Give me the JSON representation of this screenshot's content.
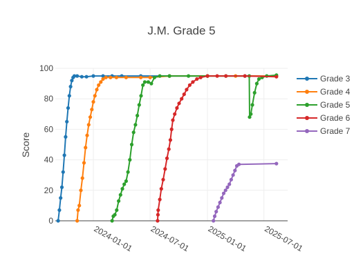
{
  "chart_data": {
    "type": "line",
    "title": "J.M. Grade 5",
    "xlabel": "",
    "ylabel": "Score",
    "xlim": [
      "2023-09-01",
      "2025-09-15"
    ],
    "ylim": [
      0,
      100
    ],
    "x_ticks": [
      "2024-01-01",
      "2024-07-01",
      "2025-01-01",
      "2025-07-01"
    ],
    "y_ticks": [
      0,
      20,
      40,
      60,
      80,
      100
    ],
    "grid": true,
    "legend_position": "right",
    "series": [
      {
        "name": "Grade 3",
        "color": "#1f77b4",
        "points": [
          [
            "2023-09-10",
            0
          ],
          [
            "2023-09-14",
            7
          ],
          [
            "2023-09-18",
            15
          ],
          [
            "2023-09-22",
            22
          ],
          [
            "2023-09-26",
            32
          ],
          [
            "2023-09-30",
            43
          ],
          [
            "2023-10-04",
            55
          ],
          [
            "2023-10-08",
            65
          ],
          [
            "2023-10-12",
            74
          ],
          [
            "2023-10-16",
            82
          ],
          [
            "2023-10-20",
            88
          ],
          [
            "2023-10-24",
            92
          ],
          [
            "2023-10-28",
            94
          ],
          [
            "2023-11-01",
            95
          ],
          [
            "2023-11-10",
            95
          ],
          [
            "2023-11-25",
            94.5
          ],
          [
            "2023-12-10",
            94.5
          ],
          [
            "2024-01-01",
            95
          ],
          [
            "2024-02-01",
            95
          ],
          [
            "2024-03-01",
            95
          ],
          [
            "2024-04-01",
            95
          ],
          [
            "2024-06-01",
            95
          ],
          [
            "2024-09-01",
            95
          ],
          [
            "2025-01-01",
            95
          ],
          [
            "2025-05-01",
            95
          ],
          [
            "2025-08-10",
            95
          ]
        ]
      },
      {
        "name": "Grade 4",
        "color": "#ff7f0e",
        "points": [
          [
            "2023-11-10",
            0
          ],
          [
            "2023-11-13",
            7
          ],
          [
            "2023-11-17",
            10
          ],
          [
            "2023-11-22",
            20
          ],
          [
            "2023-11-27",
            28
          ],
          [
            "2023-12-02",
            38
          ],
          [
            "2023-12-07",
            48
          ],
          [
            "2023-12-12",
            56
          ],
          [
            "2023-12-17",
            63
          ],
          [
            "2023-12-22",
            68
          ],
          [
            "2023-12-27",
            73
          ],
          [
            "2024-01-01",
            78
          ],
          [
            "2024-01-06",
            82
          ],
          [
            "2024-01-12",
            86
          ],
          [
            "2024-01-18",
            89
          ],
          [
            "2024-01-25",
            91
          ],
          [
            "2024-02-01",
            93
          ],
          [
            "2024-02-10",
            94
          ],
          [
            "2024-02-25",
            94
          ],
          [
            "2024-03-15",
            94
          ],
          [
            "2024-04-15",
            94
          ],
          [
            "2024-06-01",
            94
          ],
          [
            "2024-07-01",
            94
          ],
          [
            "2024-09-01",
            95
          ],
          [
            "2025-01-01",
            95
          ],
          [
            "2025-04-01",
            95
          ],
          [
            "2025-08-10",
            95
          ]
        ]
      },
      {
        "name": "Grade 5",
        "color": "#2ca02c",
        "points": [
          [
            "2024-03-01",
            0
          ],
          [
            "2024-03-05",
            3
          ],
          [
            "2024-03-10",
            4
          ],
          [
            "2024-03-16",
            7
          ],
          [
            "2024-03-22",
            13
          ],
          [
            "2024-03-28",
            17
          ],
          [
            "2024-04-03",
            21
          ],
          [
            "2024-04-09",
            24
          ],
          [
            "2024-04-15",
            26
          ],
          [
            "2024-04-21",
            32
          ],
          [
            "2024-04-27",
            40
          ],
          [
            "2024-05-03",
            50
          ],
          [
            "2024-05-09",
            58
          ],
          [
            "2024-05-15",
            63
          ],
          [
            "2024-05-21",
            69
          ],
          [
            "2024-05-27",
            76
          ],
          [
            "2024-06-02",
            82
          ],
          [
            "2024-06-08",
            89
          ],
          [
            "2024-06-14",
            91
          ],
          [
            "2024-06-25",
            91
          ],
          [
            "2024-07-05",
            90
          ],
          [
            "2024-07-15",
            94
          ],
          [
            "2024-08-01",
            95
          ],
          [
            "2024-09-01",
            95
          ],
          [
            "2024-11-01",
            95
          ],
          [
            "2025-01-01",
            95
          ],
          [
            "2025-03-01",
            95
          ],
          [
            "2025-05-15",
            95
          ],
          [
            "2025-05-16",
            68
          ],
          [
            "2025-05-20",
            70
          ],
          [
            "2025-05-25",
            76
          ],
          [
            "2025-06-01",
            84
          ],
          [
            "2025-06-08",
            90
          ],
          [
            "2025-06-15",
            93
          ],
          [
            "2025-06-25",
            94
          ],
          [
            "2025-07-10",
            95
          ],
          [
            "2025-08-10",
            95.5
          ]
        ]
      },
      {
        "name": "Grade 6",
        "color": "#d62728",
        "points": [
          [
            "2024-07-25",
            0
          ],
          [
            "2024-07-26",
            4
          ],
          [
            "2024-07-27",
            7
          ],
          [
            "2024-08-01",
            14
          ],
          [
            "2024-08-06",
            21
          ],
          [
            "2024-08-12",
            27
          ],
          [
            "2024-08-18",
            34
          ],
          [
            "2024-08-24",
            41
          ],
          [
            "2024-08-30",
            47
          ],
          [
            "2024-09-04",
            53
          ],
          [
            "2024-09-08",
            60
          ],
          [
            "2024-09-12",
            66
          ],
          [
            "2024-09-18",
            70
          ],
          [
            "2024-09-25",
            74
          ],
          [
            "2024-10-02",
            77
          ],
          [
            "2024-10-10",
            80
          ],
          [
            "2024-10-18",
            83
          ],
          [
            "2024-10-26",
            86
          ],
          [
            "2024-11-05",
            89
          ],
          [
            "2024-11-15",
            91
          ],
          [
            "2024-11-28",
            93
          ],
          [
            "2024-12-10",
            94
          ],
          [
            "2025-01-01",
            95
          ],
          [
            "2025-02-01",
            95
          ],
          [
            "2025-03-01",
            95
          ],
          [
            "2025-05-01",
            95
          ],
          [
            "2025-08-10",
            94.5
          ]
        ]
      },
      {
        "name": "Grade 7",
        "color": "#9467bd",
        "points": [
          [
            "2025-01-20",
            0
          ],
          [
            "2025-01-24",
            3
          ],
          [
            "2025-01-29",
            6
          ],
          [
            "2025-02-04",
            9
          ],
          [
            "2025-02-10",
            12
          ],
          [
            "2025-02-16",
            15
          ],
          [
            "2025-02-22",
            18
          ],
          [
            "2025-02-28",
            20
          ],
          [
            "2025-03-06",
            22
          ],
          [
            "2025-03-12",
            24
          ],
          [
            "2025-03-18",
            27
          ],
          [
            "2025-03-24",
            30
          ],
          [
            "2025-03-30",
            33
          ],
          [
            "2025-04-05",
            36
          ],
          [
            "2025-04-12",
            37
          ],
          [
            "2025-08-10",
            37.5
          ]
        ]
      }
    ]
  }
}
